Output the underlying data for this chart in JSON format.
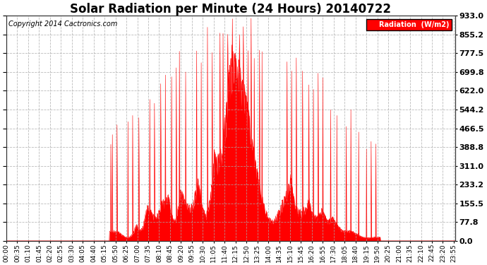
{
  "title": "Solar Radiation per Minute (24 Hours) 20140722",
  "copyright": "Copyright 2014 Cactronics.com",
  "legend_label": "Radiation  (W/m2)",
  "yticks": [
    0.0,
    77.8,
    155.5,
    233.2,
    311.0,
    388.8,
    466.5,
    544.2,
    622.0,
    699.8,
    777.5,
    855.2,
    933.0
  ],
  "ymax": 933.0,
  "ymin": 0.0,
  "bar_color": "#FF0000",
  "background_color": "#FFFFFF",
  "grid_color": "#AAAAAA",
  "title_fontsize": 12,
  "copyright_fontsize": 7,
  "axis_label_fontsize": 6.5,
  "ytick_fontsize": 8,
  "tick_step": 35,
  "sunrise_minute": 330,
  "sunset_minute": 1200,
  "peak_minute": 745
}
